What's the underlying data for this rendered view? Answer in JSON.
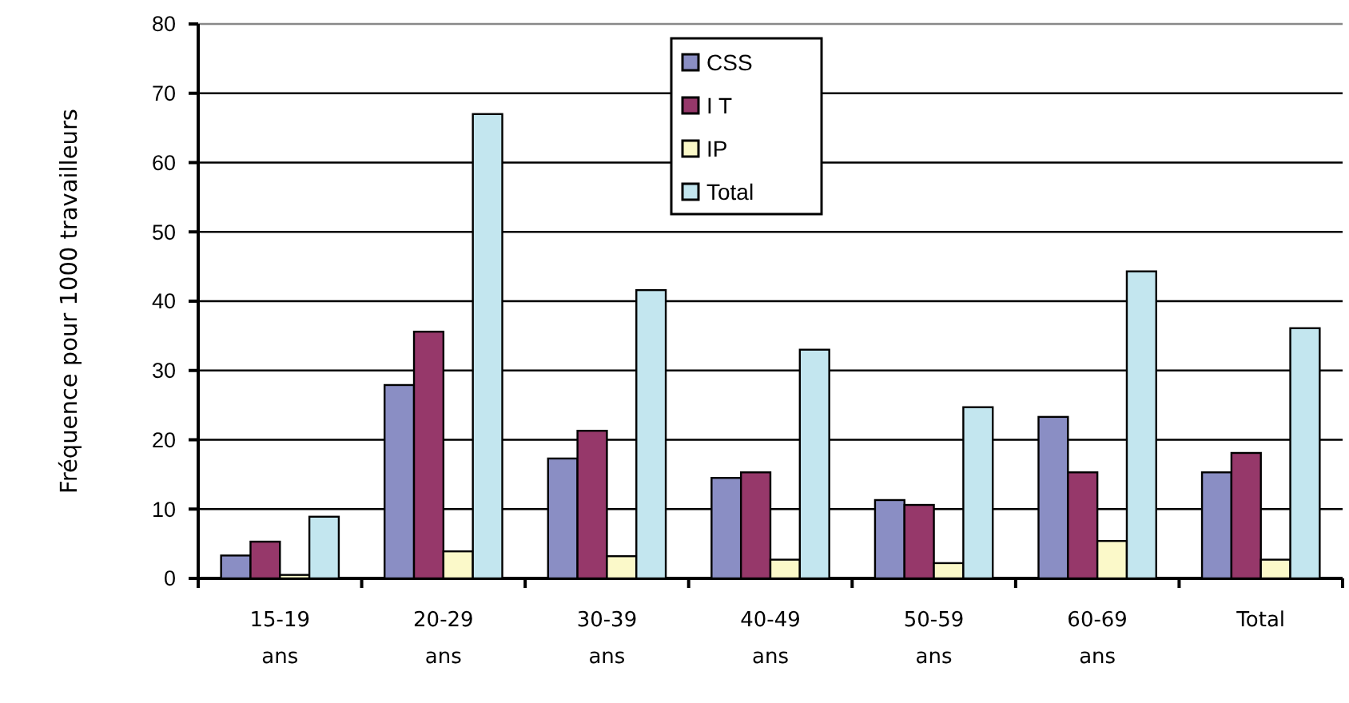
{
  "chart_data": {
    "type": "bar",
    "ylabel": "Fréquence pour 1000 travailleurs",
    "categories": [
      "15-19 ans",
      "20-29 ans",
      "30-39 ans",
      "40-49 ans",
      "50-59 ans",
      "60-69 ans",
      "Total"
    ],
    "series": [
      {
        "name": "CSS",
        "color": "#8a8ec4",
        "values": [
          3.3,
          27.9,
          17.3,
          14.5,
          11.3,
          23.3,
          15.3
        ]
      },
      {
        "name": "I T",
        "color": "#96386a",
        "values": [
          5.3,
          35.6,
          21.3,
          15.3,
          10.6,
          15.3,
          18.1
        ]
      },
      {
        "name": "IP",
        "color": "#fbf9c9",
        "values": [
          0.5,
          3.9,
          3.2,
          2.7,
          2.2,
          5.4,
          2.7
        ]
      },
      {
        "name": "Total",
        "color": "#c3e6ef",
        "values": [
          8.9,
          67,
          41.6,
          33,
          24.7,
          44.3,
          36.1
        ]
      }
    ],
    "ylim": [
      0,
      80
    ],
    "yticks": [
      0,
      10,
      20,
      30,
      40,
      50,
      60,
      70,
      80
    ],
    "grid": "y",
    "legend": "top"
  }
}
